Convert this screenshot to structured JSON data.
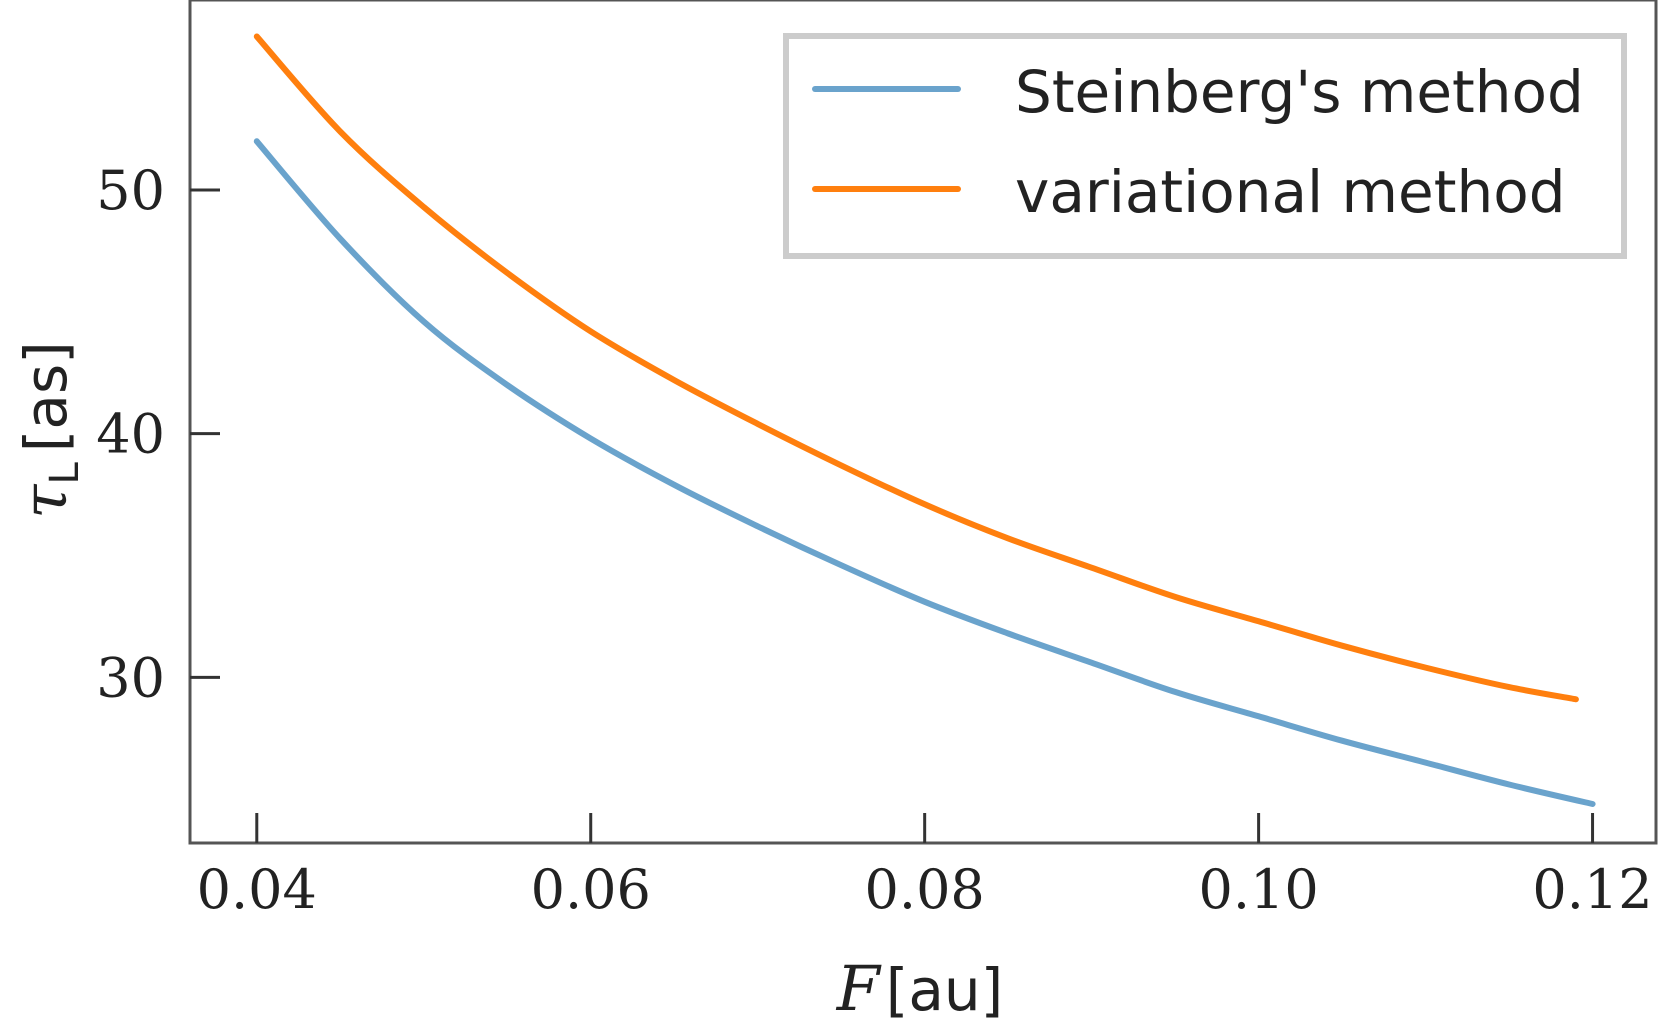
{
  "chart_data": {
    "type": "line",
    "title": "",
    "xlabel": {
      "symbol": "F",
      "unit": "[au]"
    },
    "ylabel": {
      "symbol": "τ",
      "subscript": "L",
      "unit": "[as]"
    },
    "xlim": [
      0.036,
      0.1238
    ],
    "ylim": [
      23.2,
      57.8
    ],
    "xticks": [
      0.04,
      0.06,
      0.08,
      0.1,
      0.12
    ],
    "xtick_labels": [
      "0.04",
      "0.06",
      "0.08",
      "0.10",
      "0.12"
    ],
    "yticks": [
      30,
      40,
      50
    ],
    "ytick_labels": [
      "30",
      "40",
      "50"
    ],
    "grid": false,
    "legend_position": "top-right",
    "series": [
      {
        "name": "Steinberg's method",
        "color": "#6aa3cc",
        "x": [
          0.04,
          0.045,
          0.05,
          0.055,
          0.06,
          0.065,
          0.07,
          0.075,
          0.08,
          0.085,
          0.09,
          0.095,
          0.1,
          0.105,
          0.11,
          0.115,
          0.12
        ],
        "y": [
          52.0,
          48.0,
          44.6,
          42.0,
          39.8,
          37.9,
          36.2,
          34.6,
          33.1,
          31.8,
          30.6,
          29.4,
          28.4,
          27.4,
          26.5,
          25.6,
          24.8
        ]
      },
      {
        "name": "variational method",
        "color": "#ff7f0e",
        "x": [
          0.04,
          0.045,
          0.05,
          0.055,
          0.06,
          0.065,
          0.07,
          0.075,
          0.08,
          0.085,
          0.09,
          0.095,
          0.1,
          0.105,
          0.11,
          0.115,
          0.119
        ],
        "y": [
          56.3,
          52.4,
          49.3,
          46.6,
          44.2,
          42.2,
          40.4,
          38.7,
          37.1,
          35.7,
          34.5,
          33.3,
          32.3,
          31.3,
          30.4,
          29.6,
          29.1
        ]
      }
    ]
  }
}
